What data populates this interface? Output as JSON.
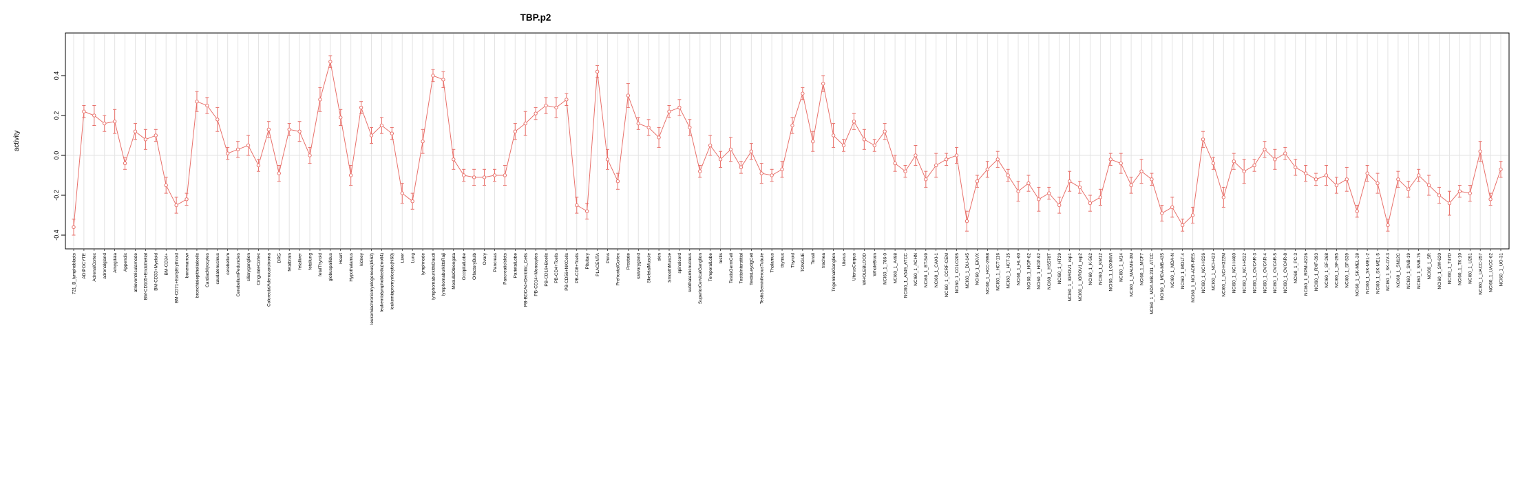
{
  "chart_data": {
    "type": "line",
    "title": "TBP.p2",
    "ylabel": "activity",
    "xlabel": "",
    "legend": "none",
    "grid": "vertical line per category, horizontal line at 0",
    "marker": "open-circle with vertical error bars",
    "ylim": [
      -0.42,
      0.56
    ],
    "yticks": [
      -0.4,
      -0.2,
      0,
      0.2,
      0.4
    ],
    "colors": {
      "series": "#e8706a",
      "grid": "#e3e3e3",
      "box": "#000000",
      "background": "#ffffff"
    },
    "categories": [
      "721_B_lymphoblasts",
      "ADIPOCYTE",
      "AdrenalCortex",
      "adrenalgland",
      "Amygdala",
      "Appendix",
      "atrioventricularnode",
      "BM-CD105+Endothelial",
      "BM-CD33+Myeloid",
      "BM-CD34+",
      "BM-CD71+EarlyErythroid",
      "bonemarrow",
      "bronchialepithelialcells",
      "CardiacMyocytes",
      "caudatenucleus",
      "cerebellum",
      "CerebellumPeduncles",
      "ciliaryganglion",
      "CingulateCortex",
      "ColorectalAdenocarcinoma",
      "DRG",
      "fetalbrain",
      "fetalliver",
      "fetallung",
      "fetalThyroid",
      "globuspallidus",
      "Heart",
      "Hypothalamus",
      "kidney",
      "leukemiachronicmyelogenous(k562)",
      "leukemialymphoblastic(molt4)",
      "leukemiapromyelocytic(hl60)",
      "Liver",
      "Lung",
      "lymphnode",
      "lymphomaburkittsDaudi",
      "lymphomaburkittsRaji",
      "MedullaOblongata",
      "OccipitalLobe",
      "OlfactoryBulb",
      "Ovary",
      "Pancreas",
      "PancreaticIslets",
      "ParietalLobe",
      "PB-BDCA4+Dentritic_Cells",
      "PB-CD14+Monocytes",
      "PB-CD19+Bcells",
      "PB-CD4+Tcells",
      "PB-CD56+NKCells",
      "PB-CD8+Tcells",
      "Pituitary",
      "PLACENTA",
      "Pons",
      "PrefrontalCortex",
      "Prostate",
      "salivarygland",
      "SkeletalMuscle",
      "skin",
      "SmoothMuscle",
      "spinalcord",
      "subthalamicnucleus",
      "SuperiorCervicalGanglion",
      "TemporalLobe",
      "testis",
      "TestisGermCell",
      "TestisInterstitial",
      "TestisLeydigCell",
      "TestisSeminiferousTubule",
      "Thalamus",
      "thymus",
      "Thyroid",
      "TONGUE",
      "Tonsil",
      "trachea",
      "TrigeminalGanglion",
      "Uterus",
      "UterusCorpus",
      "WHOLEBLOOD",
      "WholeBrain",
      "NCI60_1_786-0",
      "NCI60_1_A498",
      "NCI60_1_A549_ATCC",
      "NCI60_1_ACHN",
      "NCI60_1_BT-549",
      "NCI60_1_CAKI-1",
      "NCI60_1_CCRF-CEM",
      "NCI60_1_COLO205",
      "NCI60_1_DU-145",
      "NCI60_1_EKVX",
      "NCI60_1_HCC-2998",
      "NCI60_1_HCT-116",
      "NCI60_1_HCT-15",
      "NCI60_1_HL-60",
      "NCI60_1_HOP-62",
      "NCI60_1_HOP-92",
      "NCI60_1_HS578T",
      "NCI60_1_HT29",
      "NCI60_1_IGROV1_rep1",
      "NCI60_1_IGROV1_rep2",
      "NCI60_1_K-562",
      "NCI60_1_KM12",
      "NCI60_1_LOXIMVI",
      "NCI60_1_M14",
      "NCI60_1_MALME-3M",
      "NCI60_1_MCF7",
      "NCI60_1_MDA-MB-231_ATCC",
      "NCI60_1_MDA-MB-435",
      "NCI60_1_MDA-N",
      "NCI60_1_MOLT-4",
      "NCI60_1_NCI-ADR-RES",
      "NCI60_1_NCI-H226",
      "NCI60_1_NCI-H23",
      "NCI60_1_NCI-H322M",
      "NCI60_1_NCI-H460",
      "NCI60_1_NCI-H522",
      "NCI60_1_OVCAR-3",
      "NCI60_1_OVCAR-4",
      "NCI60_1_OVCAR-5",
      "NCI60_1_OVCAR-8",
      "NCI60_1_PC-3",
      "NCI60_1_RPMI-8226",
      "NCI60_1_RXF-393",
      "NCI60_1_SF-268",
      "NCI60_1_SF-295",
      "NCI60_1_SF-539",
      "NCI60_1_SK-MEL-28",
      "NCI60_1_SK-MEL-2",
      "NCI60_1_SK-MEL-5",
      "NCI60_1_SK-OV-3",
      "NCI60_1_SN12C",
      "NCI60_1_SNB-19",
      "NCI60_1_SNB-75",
      "NCI60_1_SR",
      "NCI60_1_SW-620",
      "NCI60_1_T47D",
      "NCI60_1_TK-10",
      "NCI60_1_U251",
      "NCI60_1_UACC-257",
      "NCI60_1_UACC-62",
      "NCI60_1_UO-31"
    ],
    "values": [
      -0.36,
      0.22,
      0.2,
      0.16,
      0.17,
      -0.04,
      0.12,
      0.08,
      0.1,
      -0.15,
      -0.25,
      -0.22,
      0.27,
      0.25,
      0.18,
      0.01,
      0.03,
      0.05,
      -0.05,
      0.13,
      -0.09,
      0.13,
      0.12,
      0.0,
      0.28,
      0.47,
      0.19,
      -0.1,
      0.24,
      0.1,
      0.15,
      0.11,
      -0.19,
      -0.23,
      0.07,
      0.4,
      0.38,
      -0.02,
      -0.1,
      -0.11,
      -0.11,
      -0.1,
      -0.1,
      0.12,
      0.16,
      0.21,
      0.25,
      0.24,
      0.28,
      -0.25,
      -0.28,
      0.42,
      -0.02,
      -0.13,
      0.3,
      0.16,
      0.14,
      0.09,
      0.22,
      0.24,
      0.14,
      -0.08,
      0.05,
      -0.02,
      0.03,
      -0.06,
      0.02,
      -0.09,
      -0.1,
      -0.07,
      0.15,
      0.31,
      0.07,
      0.36,
      0.1,
      0.05,
      0.17,
      0.08,
      0.05,
      0.12,
      -0.04,
      -0.08,
      0.0,
      -0.12,
      -0.05,
      -0.02,
      0.0,
      -0.33,
      -0.13,
      -0.07,
      -0.02,
      -0.1,
      -0.18,
      -0.14,
      -0.22,
      -0.19,
      -0.25,
      -0.13,
      -0.16,
      -0.24,
      -0.21,
      -0.02,
      -0.04,
      -0.15,
      -0.08,
      -0.12,
      -0.29,
      -0.26,
      -0.35,
      -0.3,
      0.08,
      -0.04,
      -0.21,
      -0.03,
      -0.08,
      -0.05,
      0.03,
      -0.02,
      0.01,
      -0.06,
      -0.09,
      -0.12,
      -0.1,
      -0.15,
      -0.12,
      -0.28,
      -0.09,
      -0.14,
      -0.35,
      -0.12,
      -0.17,
      -0.1,
      -0.15,
      -0.2,
      -0.24,
      -0.18,
      -0.19,
      0.02,
      -0.22,
      -0.07
    ],
    "errors": [
      0.04,
      0.03,
      0.05,
      0.04,
      0.06,
      0.03,
      0.04,
      0.05,
      0.03,
      0.04,
      0.04,
      0.03,
      0.05,
      0.04,
      0.06,
      0.03,
      0.04,
      0.05,
      0.03,
      0.04,
      0.04,
      0.03,
      0.05,
      0.04,
      0.06,
      0.03,
      0.04,
      0.05,
      0.03,
      0.04,
      0.04,
      0.03,
      0.05,
      0.04,
      0.06,
      0.03,
      0.04,
      0.05,
      0.03,
      0.04,
      0.04,
      0.03,
      0.05,
      0.04,
      0.06,
      0.03,
      0.04,
      0.05,
      0.03,
      0.04,
      0.04,
      0.03,
      0.05,
      0.04,
      0.06,
      0.03,
      0.04,
      0.05,
      0.03,
      0.04,
      0.04,
      0.03,
      0.05,
      0.04,
      0.06,
      0.03,
      0.04,
      0.05,
      0.03,
      0.04,
      0.04,
      0.03,
      0.05,
      0.04,
      0.06,
      0.03,
      0.04,
      0.05,
      0.03,
      0.04,
      0.04,
      0.03,
      0.05,
      0.04,
      0.06,
      0.03,
      0.04,
      0.05,
      0.03,
      0.04,
      0.04,
      0.03,
      0.05,
      0.04,
      0.06,
      0.03,
      0.04,
      0.05,
      0.03,
      0.04,
      0.04,
      0.03,
      0.05,
      0.04,
      0.06,
      0.03,
      0.04,
      0.05,
      0.03,
      0.04,
      0.04,
      0.03,
      0.05,
      0.04,
      0.06,
      0.03,
      0.04,
      0.05,
      0.03,
      0.04,
      0.04,
      0.03,
      0.05,
      0.04,
      0.06,
      0.03,
      0.04,
      0.05,
      0.03,
      0.04,
      0.04,
      0.03,
      0.05,
      0.04,
      0.06,
      0.03,
      0.04,
      0.05,
      0.03,
      0.04
    ]
  }
}
